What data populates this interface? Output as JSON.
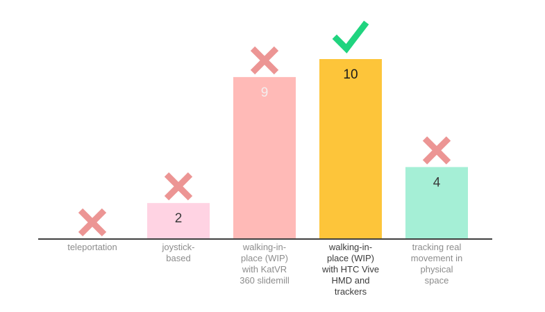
{
  "chart_data": {
    "type": "bar",
    "categories": [
      [
        "teleportation"
      ],
      [
        "joystick-",
        "based"
      ],
      [
        "walking-in-",
        "place (WIP)",
        "with KatVR",
        "360 slidemill"
      ],
      [
        "walking-in-",
        "place (WIP)",
        "with HTC Vive",
        "HMD and",
        "trackers"
      ],
      [
        "tracking real",
        "movement in",
        "physical",
        "space"
      ]
    ],
    "values": [
      0,
      2,
      9,
      10,
      4
    ],
    "value_labels": [
      "",
      "2",
      "9",
      "10",
      "4"
    ],
    "bar_colors": [
      "#ffd3e3",
      "#ffd3e3",
      "#ffbab7",
      "#fdc53a",
      "#a5efd6"
    ],
    "value_label_colors": [
      "#3a3a3a",
      "#3a3a3a",
      "#f4eeee",
      "#1a1a1a",
      "#3a3a3a"
    ],
    "category_label_colors": [
      "#8c8c8c",
      "#8c8c8c",
      "#8c8c8c",
      "#3a3a3a",
      "#8c8c8c"
    ],
    "markers": [
      "cross-icon",
      "cross-icon",
      "cross-icon",
      "check-icon",
      "cross-icon"
    ],
    "marker_colors": {
      "cross-icon": "#ec9594",
      "check-icon": "#20d47f"
    },
    "axis_color": "#3f3f3f",
    "ylim": [
      0,
      10
    ],
    "title": "",
    "xlabel": "",
    "ylabel": "",
    "grid": false,
    "legend": "none"
  }
}
